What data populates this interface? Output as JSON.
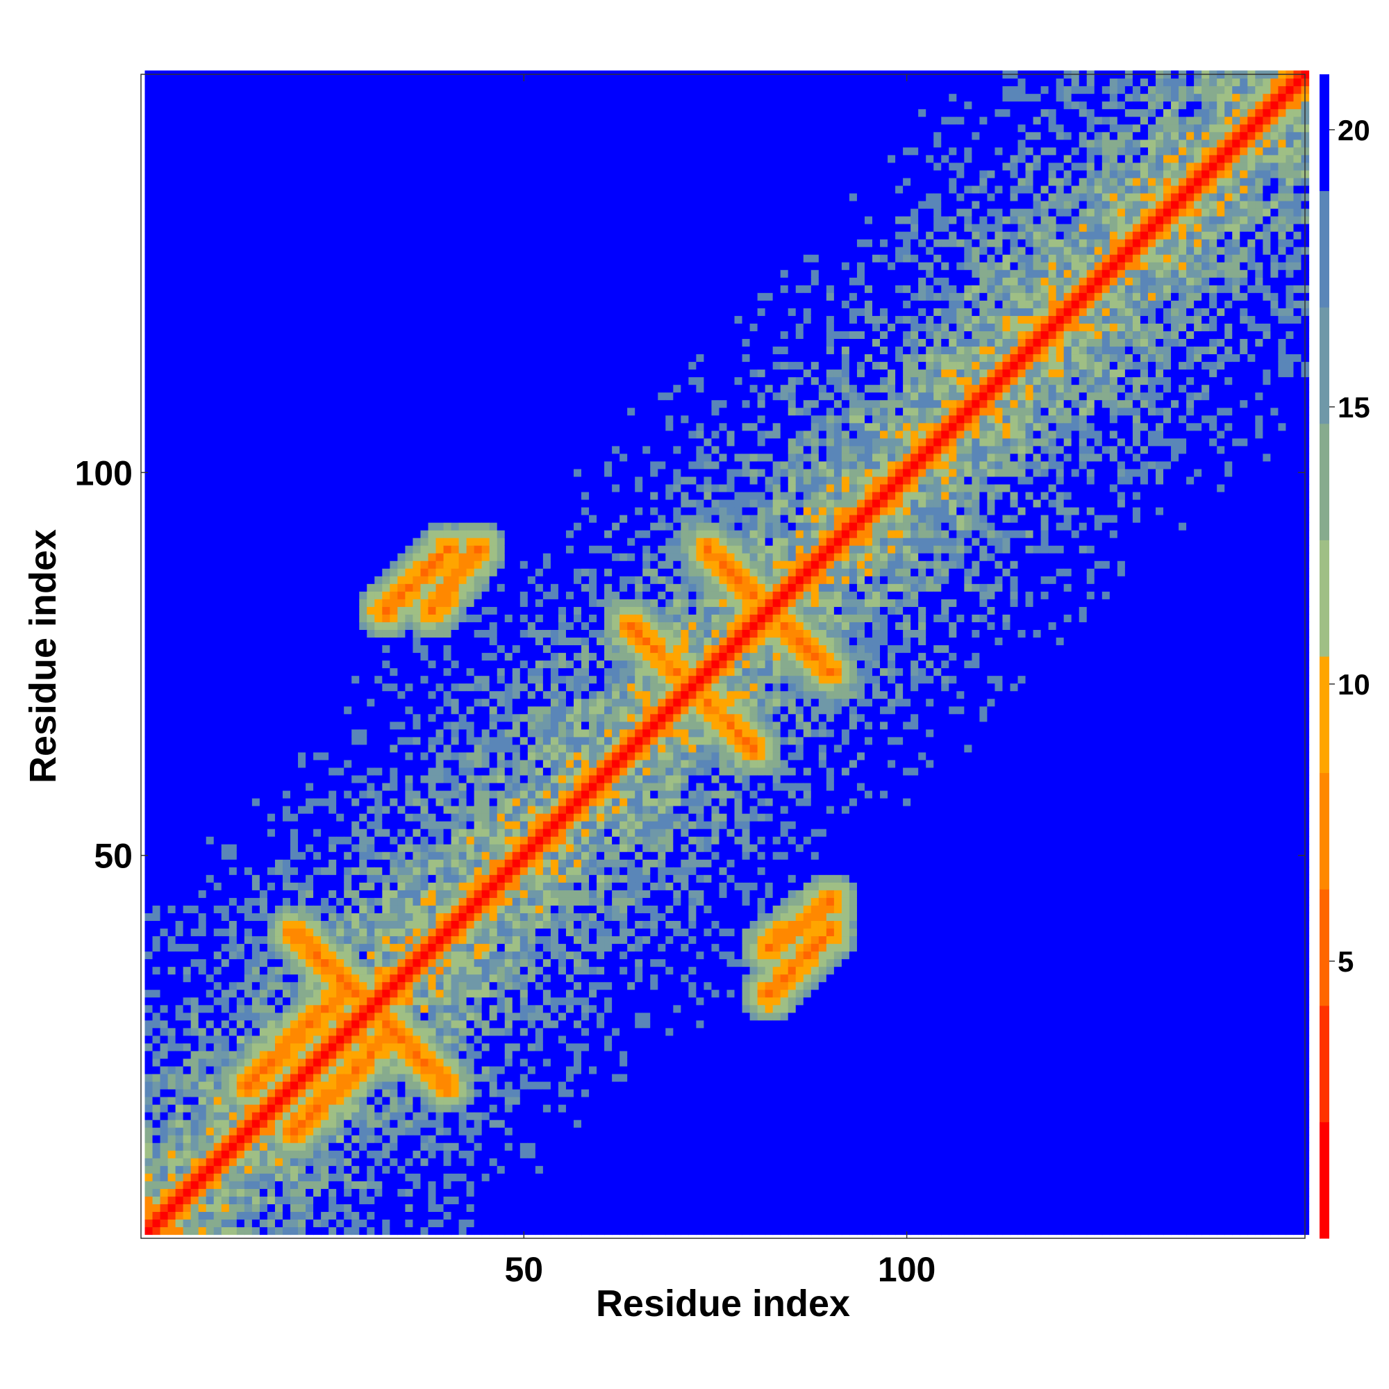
{
  "chart_data": {
    "type": "heatmap",
    "title": "",
    "xlabel": "Residue index",
    "ylabel": "Residue index",
    "n_residues": 152,
    "xlim": [
      1,
      152
    ],
    "ylim": [
      1,
      152
    ],
    "x_ticks": [
      50,
      100
    ],
    "y_ticks": [
      50,
      100
    ],
    "colorbar": {
      "ticks": [
        5,
        10,
        15,
        20
      ],
      "range": [
        0,
        21
      ],
      "colors": [
        "#ff0000",
        "#ff3300",
        "#ff6600",
        "#ff8800",
        "#ffa500",
        "#9fbf85",
        "#87ab8e",
        "#6f98a8",
        "#5a86b8",
        "#0000ff"
      ]
    },
    "diagonal_value": 0,
    "secondary_structure": [
      {
        "type": "antiparallel_contact",
        "i": [
          64,
          70
        ],
        "j": [
          80,
          74
        ]
      },
      {
        "type": "antiparallel_contact",
        "i": [
          74,
          80
        ],
        "j": [
          90,
          84
        ]
      },
      {
        "type": "parallel_contact",
        "i": [
          14,
          26
        ],
        "j": [
          20,
          32
        ]
      },
      {
        "type": "antiparallel_contact",
        "i": [
          32,
          40
        ],
        "j": [
          28,
          20
        ]
      },
      {
        "type": "antiparallel_contact",
        "i": [
          82,
          90
        ],
        "j": [
          38,
          44
        ]
      },
      {
        "type": "antiparallel_contact",
        "i": [
          32,
          40
        ],
        "j": [
          82,
          90
        ]
      },
      {
        "type": "helix",
        "i": [
          45,
          60
        ]
      },
      {
        "type": "helix",
        "i": [
          96,
          118
        ]
      }
    ]
  }
}
